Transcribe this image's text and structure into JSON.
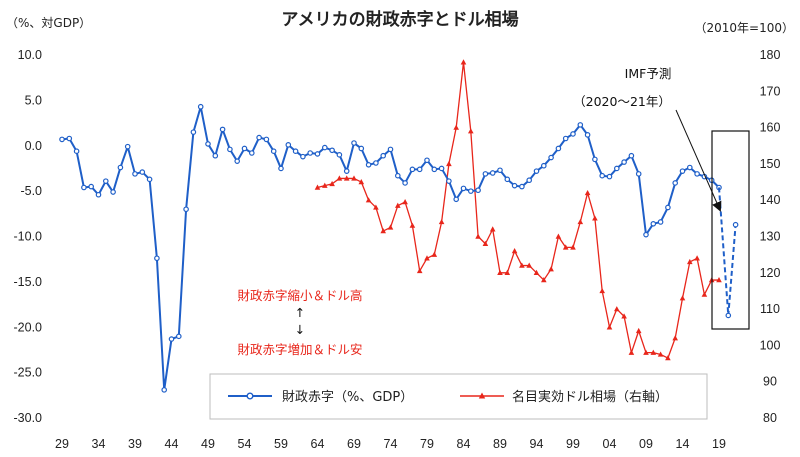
{
  "chart_data": {
    "type": "line",
    "title": "アメリカの財政赤字とドル相場",
    "left_axis_unit": "（%、対GDP）",
    "right_axis_unit": "（2010年=100）",
    "x_tick_labels": [
      "29",
      "34",
      "39",
      "44",
      "49",
      "54",
      "59",
      "64",
      "69",
      "74",
      "79",
      "84",
      "89",
      "94",
      "99",
      "04",
      "09",
      "14",
      "19"
    ],
    "xlim": [
      1929,
      2021
    ],
    "ylim_left": [
      -30,
      10
    ],
    "yticks_left": [
      "10.0",
      "5.0",
      "0.0",
      "-5.0",
      "-10.0",
      "-15.0",
      "-20.0",
      "-25.0",
      "-30.0"
    ],
    "ylim_right": [
      80,
      180
    ],
    "yticks_right": [
      "180",
      "170",
      "160",
      "150",
      "140",
      "130",
      "120",
      "110",
      "100",
      "90",
      "80"
    ],
    "series": [
      {
        "name": "財政赤字（%、GDP）",
        "axis": "left",
        "color": "#1f5fc8",
        "x": [
          1929,
          1930,
          1931,
          1932,
          1933,
          1934,
          1935,
          1936,
          1937,
          1938,
          1939,
          1940,
          1941,
          1942,
          1943,
          1944,
          1945,
          1946,
          1947,
          1948,
          1949,
          1950,
          1951,
          1952,
          1953,
          1954,
          1955,
          1956,
          1957,
          1958,
          1959,
          1960,
          1961,
          1962,
          1963,
          1964,
          1965,
          1966,
          1967,
          1968,
          1969,
          1970,
          1971,
          1972,
          1973,
          1974,
          1975,
          1976,
          1977,
          1978,
          1979,
          1980,
          1981,
          1982,
          1983,
          1984,
          1985,
          1986,
          1987,
          1988,
          1989,
          1990,
          1991,
          1992,
          1993,
          1994,
          1995,
          1996,
          1997,
          1998,
          1999,
          2000,
          2001,
          2002,
          2003,
          2004,
          2005,
          2006,
          2007,
          2008,
          2009,
          2010,
          2011,
          2012,
          2013,
          2014,
          2015,
          2016,
          2017,
          2018,
          2019
        ],
        "values": [
          0.7,
          0.8,
          -0.6,
          -4.6,
          -4.5,
          -5.4,
          -3.9,
          -5.1,
          -2.4,
          -0.1,
          -3.1,
          -2.9,
          -3.7,
          -12.4,
          -26.9,
          -21.3,
          -21.0,
          -7.0,
          1.5,
          4.3,
          0.2,
          -1.1,
          1.8,
          -0.4,
          -1.7,
          -0.3,
          -0.8,
          0.9,
          0.7,
          -0.6,
          -2.5,
          0.1,
          -0.6,
          -1.2,
          -0.8,
          -0.9,
          -0.2,
          -0.5,
          -1.0,
          -2.8,
          0.3,
          -0.3,
          -2.1,
          -1.9,
          -1.1,
          -0.4,
          -3.3,
          -4.1,
          -2.6,
          -2.6,
          -1.6,
          -2.6,
          -2.5,
          -3.9,
          -5.9,
          -4.7,
          -5.0,
          -4.9,
          -3.1,
          -3.0,
          -2.7,
          -3.7,
          -4.4,
          -4.5,
          -3.8,
          -2.8,
          -2.2,
          -1.3,
          -0.3,
          0.8,
          1.3,
          2.3,
          1.2,
          -1.5,
          -3.3,
          -3.4,
          -2.5,
          -1.8,
          -1.1,
          -3.1,
          -9.8,
          -8.6,
          -8.4,
          -6.8,
          -4.1,
          -2.8,
          -2.4,
          -3.1,
          -3.4,
          -3.8,
          -4.6
        ]
      },
      {
        "name": "名目実効ドル相場（右軸）",
        "axis": "right",
        "color": "#e8261b",
        "x": [
          1964,
          1965,
          1966,
          1967,
          1968,
          1969,
          1970,
          1971,
          1972,
          1973,
          1974,
          1975,
          1976,
          1977,
          1978,
          1979,
          1980,
          1981,
          1982,
          1983,
          1984,
          1985,
          1986,
          1987,
          1988,
          1989,
          1990,
          1991,
          1992,
          1993,
          1994,
          1995,
          1996,
          1997,
          1998,
          1999,
          2000,
          2001,
          2002,
          2003,
          2004,
          2005,
          2006,
          2007,
          2008,
          2009,
          2010,
          2011,
          2012,
          2013,
          2014,
          2015,
          2016,
          2017,
          2018,
          2019
        ],
        "values": [
          143.5,
          144.0,
          144.5,
          146.0,
          146.0,
          146.0,
          145.0,
          140.0,
          138.0,
          131.5,
          132.5,
          138.5,
          139.5,
          133.0,
          120.5,
          124.0,
          125.0,
          134.0,
          150.0,
          160.0,
          178.0,
          159.0,
          130.0,
          128.0,
          132.0,
          120.0,
          120.0,
          126.0,
          122.0,
          122.0,
          120.0,
          118.0,
          121.0,
          130.0,
          127.0,
          127.0,
          134.0,
          142.0,
          135.0,
          115.0,
          105.0,
          110.0,
          108.0,
          98.0,
          104.0,
          98.0,
          98.0,
          97.5,
          96.5,
          102.0,
          113.0,
          123.0,
          124.0,
          114.0,
          118.0,
          118.0
        ]
      }
    ],
    "forecast": {
      "label": "IMF予測",
      "period": "（2020～21年）",
      "x": [
        2019,
        2020,
        2021
      ],
      "values": [
        -4.6,
        -18.7,
        -8.7
      ]
    },
    "annotation_top": "財政赤字縮小＆ドル高",
    "annotation_arrow_up": "↑",
    "annotation_arrow_down": "↓",
    "annotation_bottom": "財政赤字増加＆ドル安",
    "legend_position": "bottom-center",
    "grid": false
  }
}
